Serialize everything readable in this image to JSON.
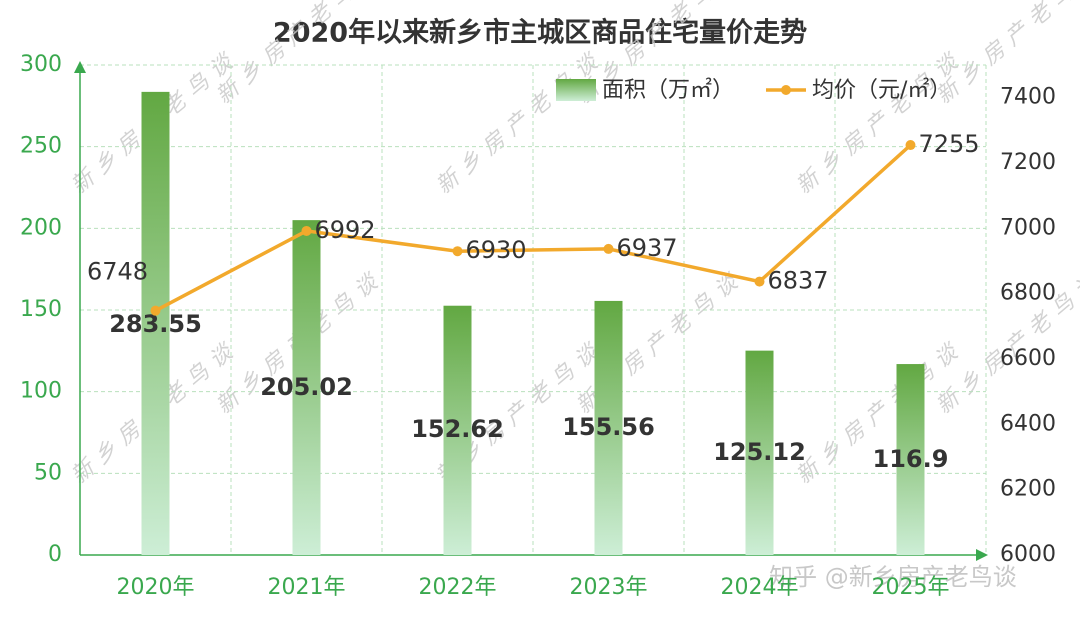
{
  "chart_data": {
    "type": "bar-line",
    "title": "2020年以来新乡市主城区商品住宅量价走势",
    "categories": [
      "2020年",
      "2021年",
      "2022年",
      "2023年",
      "2024年",
      "2025年"
    ],
    "series": [
      {
        "name": "面积（万㎡）",
        "type": "bar",
        "color": "#63a845",
        "values": [
          283.55,
          205.02,
          152.62,
          155.56,
          125.12,
          116.9
        ]
      },
      {
        "name": "均价（元/㎡）",
        "type": "line",
        "axis": "y2",
        "color": "#f2a92c",
        "values": [
          6748,
          6992,
          6930,
          6937,
          6837,
          7255
        ]
      }
    ],
    "ylim": [
      0,
      300
    ],
    "yticks": [
      0,
      50,
      100,
      150,
      200,
      250,
      300
    ],
    "y2lim": [
      6000,
      7500
    ],
    "y2ticks": [
      6000,
      6200,
      6400,
      6600,
      6800,
      7000,
      7200,
      7400
    ],
    "grid": true,
    "legend": "top-right",
    "watermark": "新乡房产老鸟谈",
    "credit": "知乎 @新乡房产老鸟谈"
  }
}
